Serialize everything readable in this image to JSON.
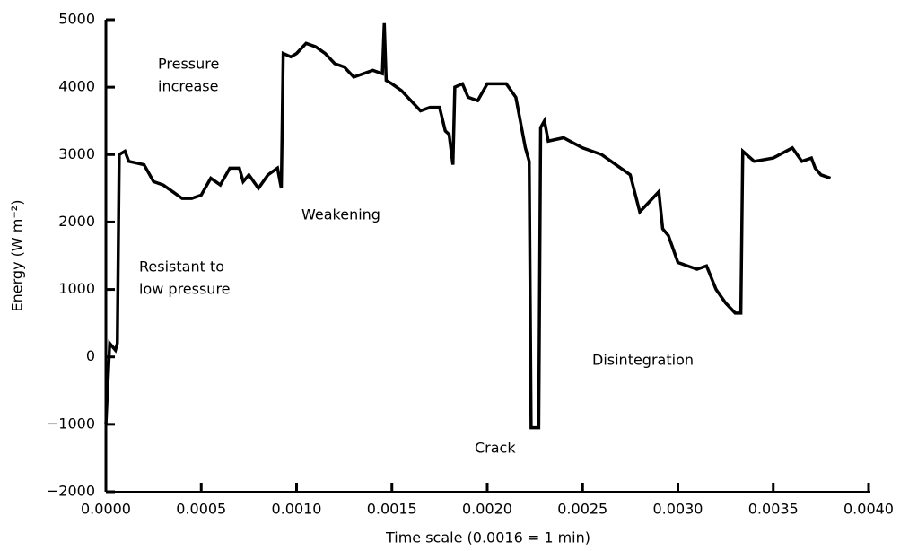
{
  "chart_data": {
    "type": "line",
    "xlabel": "Time scale (0.0016 = 1 min)",
    "ylabel": "Energy (W m⁻²)",
    "color": "#000000",
    "x": [
      0,
      2e-05,
      5e-05,
      6e-05,
      7e-05,
      0.0001,
      0.00012,
      0.0002,
      0.00025,
      0.0003,
      0.00035,
      0.0004,
      0.00045,
      0.0005,
      0.00055,
      0.0006,
      0.00065,
      0.0007,
      0.00072,
      0.00075,
      0.0008,
      0.00085,
      0.0009,
      0.00092,
      0.00093,
      0.00097,
      0.001,
      0.00105,
      0.0011,
      0.00115,
      0.0012,
      0.00125,
      0.0013,
      0.00135,
      0.0014,
      0.00145,
      0.00146,
      0.00147,
      0.0015,
      0.00155,
      0.0016,
      0.00165,
      0.0017,
      0.00175,
      0.00178,
      0.0018,
      0.00182,
      0.00183,
      0.00187,
      0.0019,
      0.00195,
      0.002,
      0.0021,
      0.00215,
      0.0022,
      0.00222,
      0.00223,
      0.00227,
      0.00228,
      0.0023,
      0.00232,
      0.0024,
      0.0025,
      0.0026,
      0.0027,
      0.00275,
      0.0028,
      0.00285,
      0.0029,
      0.00292,
      0.00295,
      0.003,
      0.0031,
      0.00315,
      0.0032,
      0.00325,
      0.0033,
      0.00333,
      0.00334,
      0.0034,
      0.0035,
      0.0036,
      0.00365,
      0.0037,
      0.00372,
      0.00375,
      0.0038
    ],
    "values": [
      -1000,
      200,
      100,
      200,
      3000,
      3050,
      2900,
      2850,
      2600,
      2550,
      2450,
      2350,
      2350,
      2400,
      2650,
      2550,
      2800,
      2800,
      2600,
      2700,
      2500,
      2700,
      2800,
      2500,
      4500,
      4450,
      4500,
      4650,
      4600,
      4500,
      4350,
      4300,
      4150,
      4200,
      4250,
      4200,
      4950,
      4100,
      4050,
      3950,
      3800,
      3650,
      3700,
      3700,
      3350,
      3300,
      2850,
      4000,
      4050,
      3850,
      3800,
      4050,
      4050,
      3850,
      3100,
      2900,
      -1050,
      -1050,
      3400,
      3500,
      3200,
      3250,
      3100,
      3000,
      2800,
      2700,
      2150,
      2300,
      2450,
      1900,
      1800,
      1400,
      1300,
      1350,
      1000,
      800,
      650,
      650,
      3050,
      2900,
      2950,
      3100,
      2900,
      2950,
      2800,
      2700,
      2650
    ],
    "xlim": [
      0,
      0.004
    ],
    "xticks": [
      {
        "value": 0,
        "label": "0.0000"
      },
      {
        "value": 0.0005,
        "label": "0.0005"
      },
      {
        "value": 0.001,
        "label": "0.0010"
      },
      {
        "value": 0.0015,
        "label": "0.0015"
      },
      {
        "value": 0.002,
        "label": "0.0020"
      },
      {
        "value": 0.0025,
        "label": "0.0025"
      },
      {
        "value": 0.003,
        "label": "0.0030"
      },
      {
        "value": 0.0035,
        "label": "0.0035"
      },
      {
        "value": 0.004,
        "label": "0.0040"
      }
    ],
    "ylim": [
      -2000,
      5000
    ],
    "yticks": [
      {
        "value": -2000,
        "label": "−2000"
      },
      {
        "value": -1000,
        "label": "−1000"
      },
      0,
      1000,
      2000,
      3000,
      4000,
      5000
    ],
    "annotations": [
      [
        "Pressure",
        "increase"
      ],
      [
        "Weakening"
      ],
      [
        "Resistant to",
        "low pressure"
      ],
      [
        "Crack"
      ],
      [
        "Disintegration"
      ]
    ]
  }
}
